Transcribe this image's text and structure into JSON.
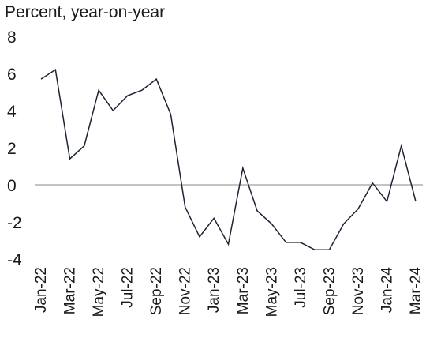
{
  "chart_data": {
    "type": "line",
    "ylabel": "Percent, year-on-year",
    "ylim": [
      -4,
      8
    ],
    "yticks": [
      "8",
      "6",
      "4",
      "2",
      "0",
      "-2",
      "-4"
    ],
    "ytick_values": [
      8,
      6,
      4,
      2,
      0,
      -2,
      -4
    ],
    "zero_line": true,
    "grid": false,
    "x": [
      "Jan-22",
      "Feb-22",
      "Mar-22",
      "Apr-22",
      "May-22",
      "Jun-22",
      "Jul-22",
      "Aug-22",
      "Sep-22",
      "Oct-22",
      "Nov-22",
      "Dec-22",
      "Jan-23",
      "Feb-23",
      "Mar-23",
      "Apr-23",
      "May-23",
      "Jun-23",
      "Jul-23",
      "Aug-23",
      "Sep-23",
      "Oct-23",
      "Nov-23",
      "Dec-23",
      "Jan-24",
      "Feb-24",
      "Mar-24"
    ],
    "xtick_labels": [
      "Jan-22",
      "Mar-22",
      "May-22",
      "Jul-22",
      "Sep-22",
      "Nov-22",
      "Jan-23",
      "Mar-23",
      "May-23",
      "Jul-23",
      "Sep-23",
      "Nov-23",
      "Jan-24",
      "Mar-24"
    ],
    "series": [
      {
        "values": [
          5.7,
          6.2,
          1.4,
          2.1,
          5.1,
          4.0,
          4.8,
          5.1,
          5.7,
          3.8,
          -1.2,
          -2.8,
          -1.8,
          -3.2,
          0.9,
          -1.4,
          -2.1,
          -3.1,
          -3.1,
          -3.5,
          -3.5,
          -2.1,
          -1.3,
          0.1,
          -0.9,
          2.1,
          -0.9
        ]
      }
    ],
    "colors": {
      "line": "#1c2333",
      "zero_line": "#8a8a8a",
      "text": "#1a1a1a"
    }
  }
}
